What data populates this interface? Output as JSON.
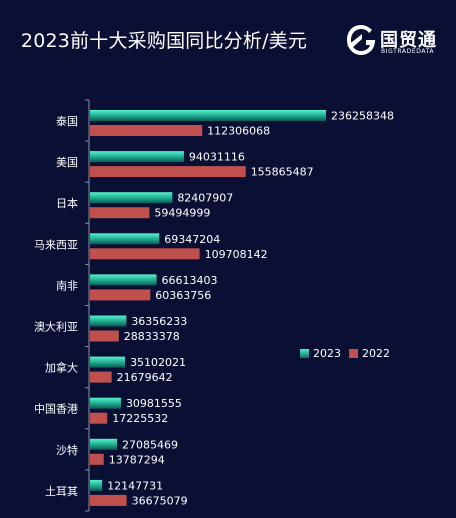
{
  "title": "2023前十大采购国同比分析/美元",
  "brand": {
    "cn": "国贸通",
    "en": "BIGTRADEDATA"
  },
  "colors": {
    "background": "#0a1033",
    "series_2023_top": "#4ff0c8",
    "series_2023_bottom": "#0d6e60",
    "series_2022": "#c0504d"
  },
  "chart_data": {
    "type": "bar",
    "orientation": "horizontal",
    "title": "2023前十大采购国同比分析/美元",
    "categories": [
      "泰国",
      "美国",
      "日本",
      "马来西亚",
      "南非",
      "澳大利亚",
      "加拿大",
      "中国香港",
      "沙特",
      "土耳其"
    ],
    "series": [
      {
        "name": "2023",
        "values": [
          236258348,
          94031116,
          82407907,
          69347204,
          66613403,
          36356233,
          35102021,
          30981555,
          27085469,
          12147731
        ]
      },
      {
        "name": "2022",
        "values": [
          112306068,
          155865487,
          59494999,
          109708142,
          60363756,
          28833378,
          21679642,
          17225532,
          13787294,
          36675079
        ]
      }
    ],
    "xlim": [
      0,
      260000000
    ],
    "grid": false,
    "legend_position": "right"
  }
}
